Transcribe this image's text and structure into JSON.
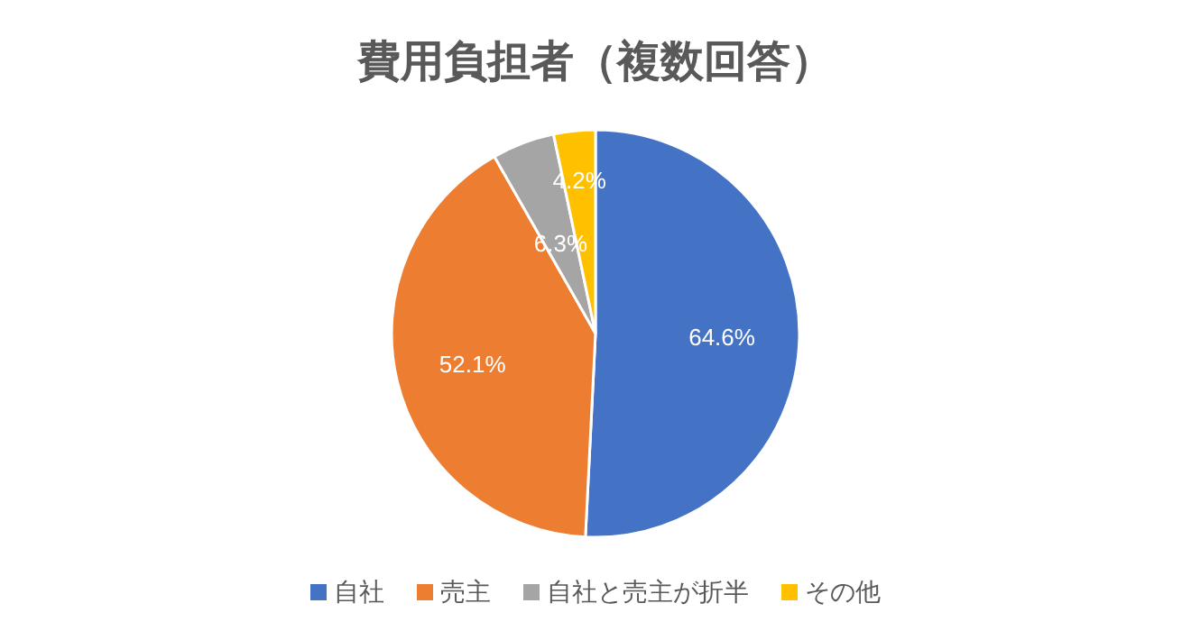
{
  "chart_data": {
    "type": "pie",
    "title": "費用負担者（複数回答）",
    "categories": [
      "自社",
      "売主",
      "自社と売主が折半",
      "その他"
    ],
    "values": [
      64.6,
      52.1,
      6.3,
      4.2
    ],
    "value_labels": [
      "64.6%",
      "52.1%",
      "6.3%",
      "4.2%"
    ],
    "colors": [
      "#4472c4",
      "#ed7d31",
      "#a5a5a5",
      "#ffc000"
    ],
    "legend": "bottom"
  }
}
